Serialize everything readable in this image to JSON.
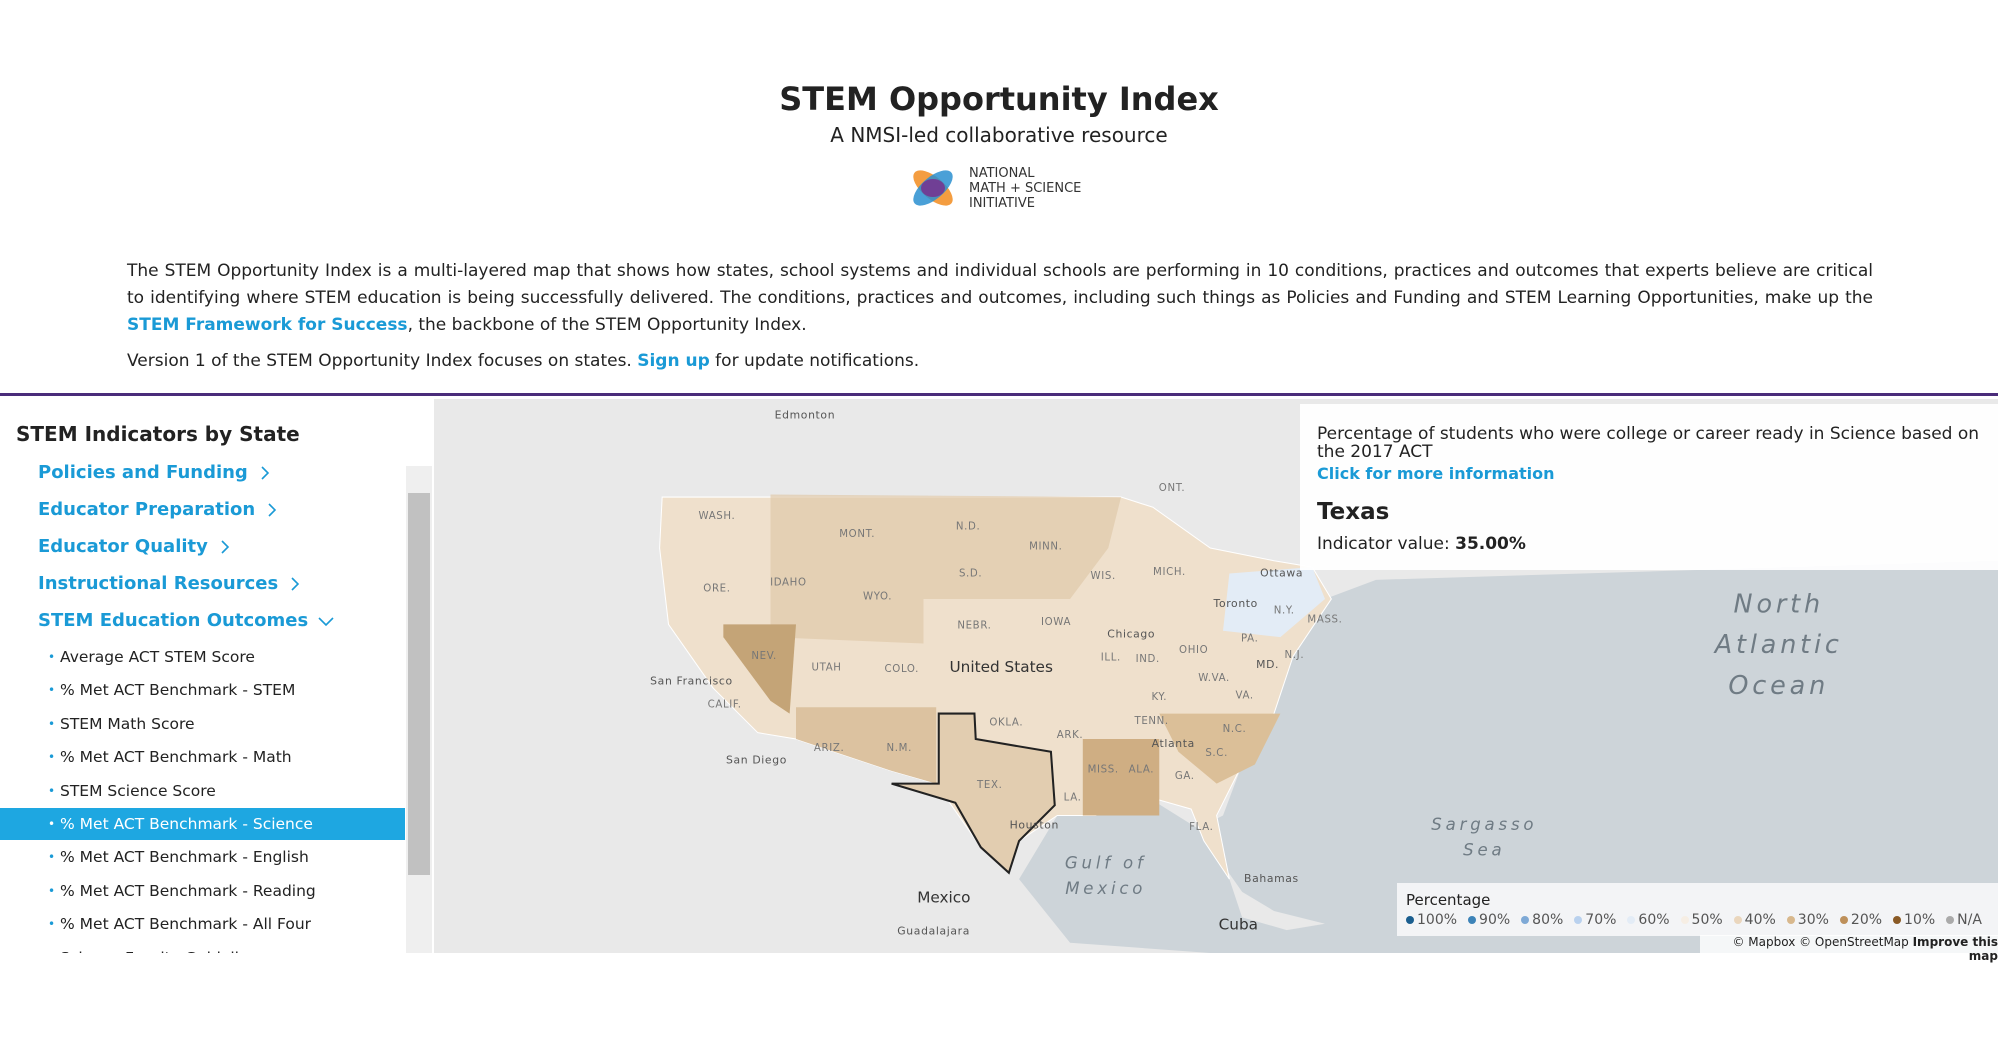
{
  "header": {
    "title": "STEM Opportunity Index",
    "subtitle": "A NMSI-led collaborative resource",
    "logo": [
      "NATIONAL",
      "MATH + SCIENCE",
      "INITIATIVE"
    ]
  },
  "intro": {
    "p1": [
      "The STEM Opportunity Index is a multi-layered map that shows how states, school systems and individual schools are performing in 10 conditions, practices and outcomes that experts believe are critical to identifying where STEM education is being successfully delivered. The conditions, practices and outcomes, including such things as Policies and Funding and STEM Learning Opportunities, make up the ",
      "STEM Framework for Success",
      ", the backbone of the STEM Opportunity Index."
    ],
    "p2": [
      "Version 1 of the STEM Opportunity Index focuses on states. ",
      "Sign up",
      " for update notifications."
    ]
  },
  "sidebar": {
    "title": "STEM Indicators by State",
    "sections": [
      "Policies and Funding",
      "Educator Preparation",
      "Educator Quality",
      "Instructional Resources",
      "STEM Education Outcomes"
    ],
    "items": [
      "Average ACT STEM Score",
      "% Met ACT Benchmark - STEM",
      "STEM Math Score",
      "% Met ACT Benchmark - Math",
      "STEM Science Score",
      "% Met ACT Benchmark - Science",
      "% Met ACT Benchmark - English",
      "% Met ACT Benchmark - Reading",
      "% Met ACT Benchmark - All Four",
      "Science Faculty Guidelines"
    ],
    "selected": 5
  },
  "info": {
    "description": "Percentage of students who were college or career ready in Science based on the 2017 ACT",
    "link": "Click for more information",
    "state": "Texas",
    "value_label": "Indicator value:",
    "value": "35.00%"
  },
  "legend": {
    "title": "Percentage",
    "items": [
      {
        "label": "100%",
        "color": "#1a5e8f"
      },
      {
        "label": "90%",
        "color": "#3c83b8"
      },
      {
        "label": "80%",
        "color": "#7ea9d6"
      },
      {
        "label": "70%",
        "color": "#b9d1ee"
      },
      {
        "label": "60%",
        "color": "#e3ecf6"
      },
      {
        "label": "50%",
        "color": "#f6eee4"
      },
      {
        "label": "40%",
        "color": "#ead6bd"
      },
      {
        "label": "30%",
        "color": "#d8b88d"
      },
      {
        "label": "20%",
        "color": "#be905a"
      },
      {
        "label": "10%",
        "color": "#8a5a25"
      },
      {
        "label": "N/A",
        "color": "#aaaaaa"
      }
    ]
  },
  "map": {
    "labels": [
      "Edmonton",
      "ONT.",
      "WASH.",
      "MONT.",
      "N.D.",
      "MINN.",
      "ORE.",
      "IDAHO",
      "WYO.",
      "S.D.",
      "WIS.",
      "MICH.",
      "Ottawa",
      "Toronto",
      "N.Y.",
      "MASS.",
      "NEBR.",
      "IOWA",
      "Chicago",
      "PA.",
      "NEV.",
      "UTAH",
      "COLO.",
      "United States",
      "ILL.",
      "IND.",
      "OHIO",
      "N.J.",
      "MD.",
      "San Francisco",
      "CALIF.",
      "W.VA.",
      "VA.",
      "KY.",
      "OKLA.",
      "TENN.",
      "N.C.",
      "ARK.",
      "Atlanta",
      "ARIZ.",
      "N.M.",
      "S.C.",
      "San Diego",
      "MISS.",
      "ALA.",
      "GA.",
      "TEX.",
      "LA.",
      "Houston",
      "FLA.",
      "Gulf of",
      "Mexico",
      "Sargasso",
      "Sea",
      "North",
      "Atlantic",
      "Ocean",
      "Mexico",
      "Cuba",
      "Bahamas",
      "Guadalajara"
    ],
    "attribution": [
      "© Mapbox © OpenStreetMap",
      "Improve this map"
    ]
  }
}
